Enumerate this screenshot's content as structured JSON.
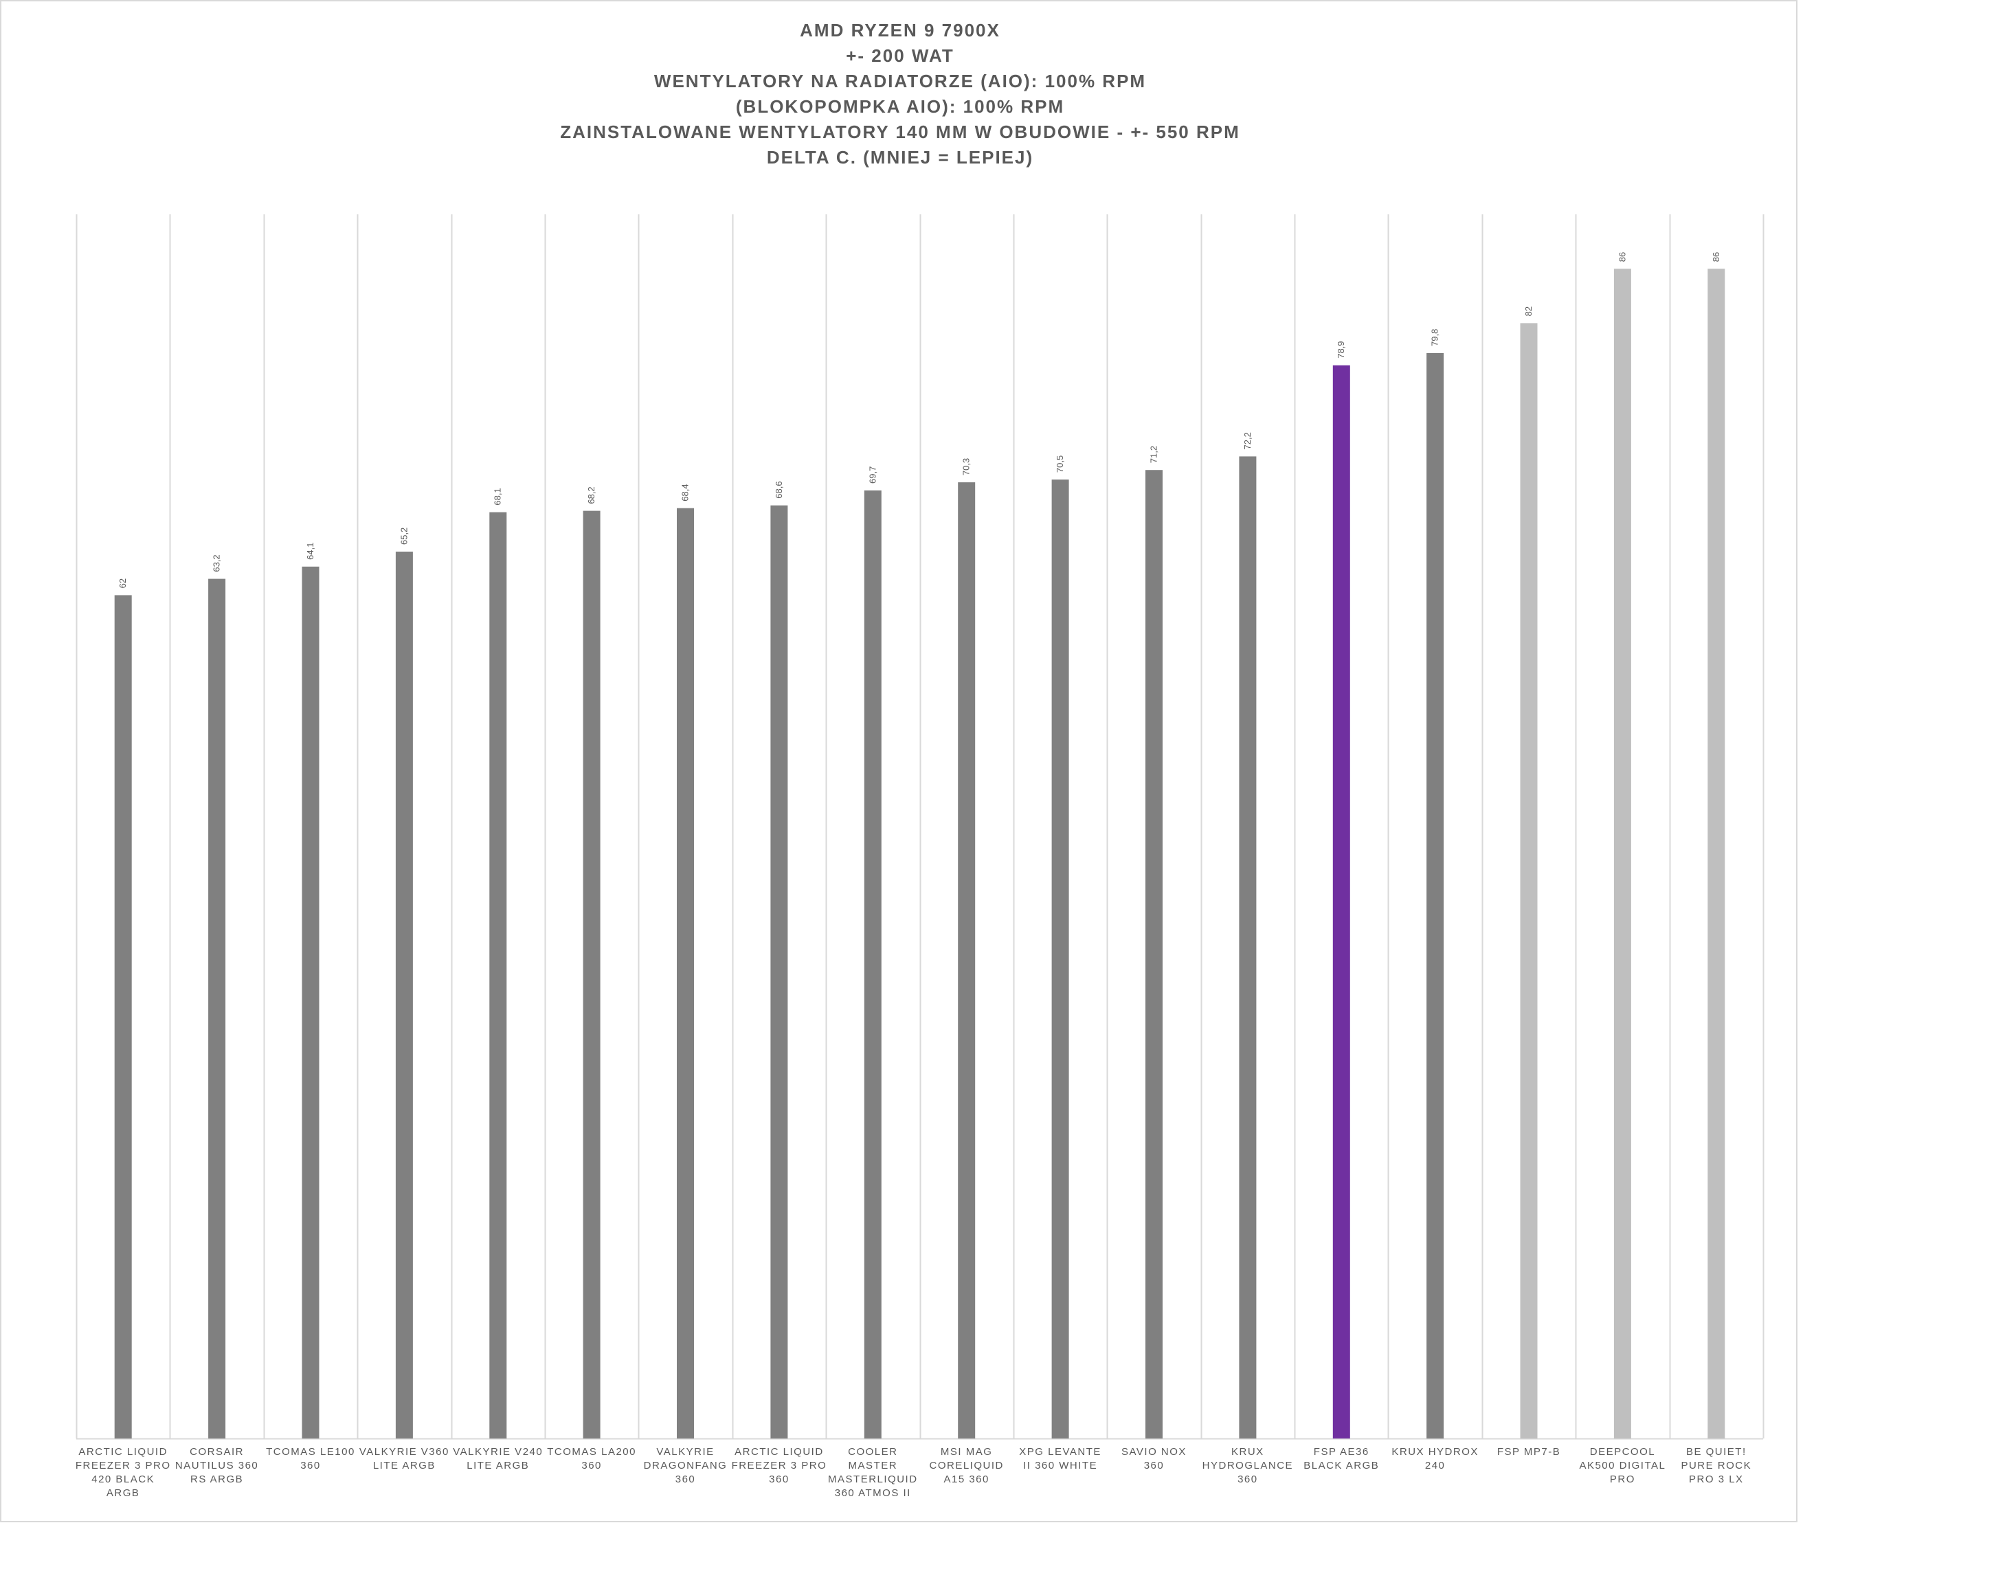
{
  "chart_data": {
    "type": "bar",
    "title_lines": [
      "AMD RYZEN 9 7900X",
      "+- 200 WAT",
      "WENTYLATORY NA RADIATORZE (AIO): 100% RPM",
      "(BLOKOPOMPKA AIO): 100% RPM",
      "ZAINSTALOWANE WENTYLATORY 140 MM W OBUDOWIE - +- 550 RPM",
      "DELTA C. (MNIEJ = LEPIEJ)"
    ],
    "categories": [
      [
        "ARCTIC LIQUID",
        "FREEZER 3 PRO",
        "420 BLACK",
        "ARGB"
      ],
      [
        "CORSAIR",
        "NAUTILUS 360",
        "RS ARGB"
      ],
      [
        "TCOMAS LE100",
        "360"
      ],
      [
        "VALKYRIE V360",
        "LITE ARGB"
      ],
      [
        "VALKYRIE V240",
        "LITE ARGB"
      ],
      [
        "TCOMAS LA200",
        "360"
      ],
      [
        "VALKYRIE",
        "DRAGONFANG",
        "360"
      ],
      [
        "ARCTIC LIQUID",
        "FREEZER 3 PRO",
        "360"
      ],
      [
        "COOLER",
        "MASTER",
        "MASTERLIQUID",
        "360 ATMOS II"
      ],
      [
        "MSI MAG",
        "CORELIQUID",
        "A15 360"
      ],
      [
        "XPG LEVANTE",
        "II 360 WHITE"
      ],
      [
        "SAVIO NOX",
        "360"
      ],
      [
        "KRUX",
        "HYDROGLANCE",
        "360"
      ],
      [
        "FSP AE36",
        "BLACK ARGB"
      ],
      [
        "KRUX HYDROX",
        "240"
      ],
      [
        "FSP MP7-B"
      ],
      [
        "DEEPCOOL",
        "AK500 DIGITAL",
        "PRO"
      ],
      [
        "BE QUIET!",
        "PURE ROCK",
        "PRO 3 LX"
      ]
    ],
    "values": [
      62,
      63.2,
      64.1,
      65.2,
      68.1,
      68.2,
      68.4,
      68.6,
      69.7,
      70.3,
      70.5,
      71.2,
      72.2,
      78.9,
      79.8,
      82,
      86,
      86
    ],
    "value_labels": [
      "62",
      "63,2",
      "64,1",
      "65,2",
      "68,1",
      "68,2",
      "68,4",
      "68,6",
      "69,7",
      "70,3",
      "70,5",
      "71,2",
      "72,2",
      "78,9",
      "79,8",
      "82",
      "86",
      "86"
    ],
    "bar_colors": [
      "#808080",
      "#808080",
      "#808080",
      "#808080",
      "#808080",
      "#808080",
      "#808080",
      "#808080",
      "#808080",
      "#808080",
      "#808080",
      "#808080",
      "#808080",
      "#7030a0",
      "#808080",
      "#bfbfbf",
      "#bfbfbf",
      "#bfbfbf"
    ],
    "highlight": "FSP AE36 BLACK ARGB",
    "colors": {
      "default": "#808080",
      "highlight": "#7030a0",
      "air_cooler": "#bfbfbf",
      "grid": "#d9d9d9",
      "text": "#595959"
    },
    "ylim": [
      0,
      90
    ],
    "grid": "vertical category separators",
    "legend": "none"
  }
}
